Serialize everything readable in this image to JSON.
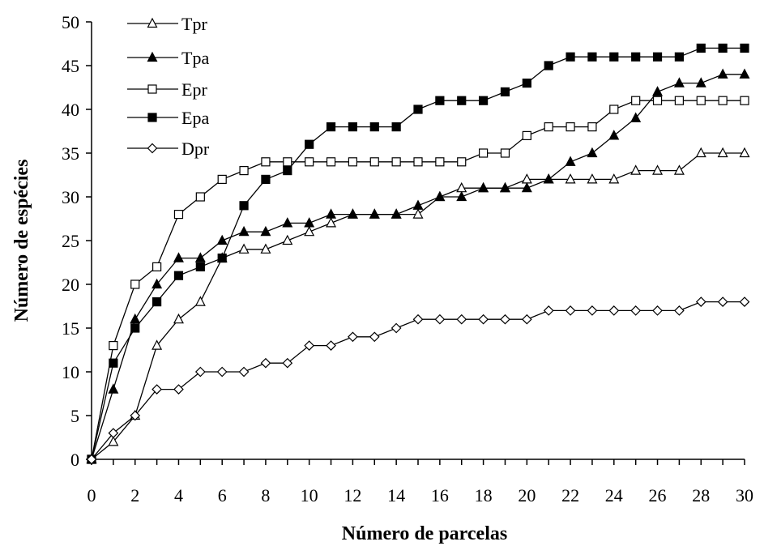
{
  "chart_data": {
    "type": "line",
    "xlabel": "Número de parcelas",
    "ylabel": "Número de espécies",
    "xlim": [
      0,
      30
    ],
    "ylim": [
      0,
      50
    ],
    "xticks": [
      0,
      2,
      4,
      6,
      8,
      10,
      12,
      14,
      16,
      18,
      20,
      22,
      24,
      26,
      28,
      30
    ],
    "yticks": [
      0,
      5,
      10,
      15,
      20,
      25,
      30,
      35,
      40,
      45,
      50
    ],
    "grid": false,
    "legend_position": "top-left",
    "x": [
      0,
      1,
      2,
      3,
      4,
      5,
      6,
      7,
      8,
      9,
      10,
      11,
      12,
      13,
      14,
      15,
      16,
      17,
      18,
      19,
      20,
      21,
      22,
      23,
      24,
      25,
      26,
      27,
      28,
      29,
      30
    ],
    "series": [
      {
        "name": "Tpr",
        "marker": "triangle-open",
        "values": [
          0,
          2,
          5,
          13,
          16,
          18,
          23,
          24,
          24,
          25,
          26,
          27,
          28,
          28,
          28,
          28,
          30,
          31,
          31,
          31,
          32,
          32,
          32,
          32,
          32,
          33,
          33,
          33,
          35,
          35,
          35
        ]
      },
      {
        "name": "Tpa",
        "marker": "triangle-filled",
        "values": [
          0,
          8,
          16,
          20,
          23,
          23,
          25,
          26,
          26,
          27,
          27,
          28,
          28,
          28,
          28,
          29,
          30,
          30,
          31,
          31,
          31,
          32,
          34,
          35,
          37,
          39,
          42,
          43,
          43,
          44,
          44
        ]
      },
      {
        "name": "Epr",
        "marker": "square-open",
        "values": [
          0,
          13,
          20,
          22,
          28,
          30,
          32,
          33,
          34,
          34,
          34,
          34,
          34,
          34,
          34,
          34,
          34,
          34,
          35,
          35,
          37,
          38,
          38,
          38,
          40,
          41,
          41,
          41,
          41,
          41,
          41
        ]
      },
      {
        "name": "Epa",
        "marker": "square-filled",
        "values": [
          0,
          11,
          15,
          18,
          21,
          22,
          23,
          29,
          32,
          33,
          36,
          38,
          38,
          38,
          38,
          40,
          41,
          41,
          41,
          42,
          43,
          45,
          46,
          46,
          46,
          46,
          46,
          46,
          47,
          47,
          47
        ]
      },
      {
        "name": "Dpr",
        "marker": "diamond-open",
        "values": [
          0,
          3,
          5,
          8,
          8,
          10,
          10,
          10,
          11,
          11,
          13,
          13,
          14,
          14,
          15,
          16,
          16,
          16,
          16,
          16,
          16,
          17,
          17,
          17,
          17,
          17,
          17,
          17,
          18,
          18,
          18
        ]
      }
    ]
  }
}
